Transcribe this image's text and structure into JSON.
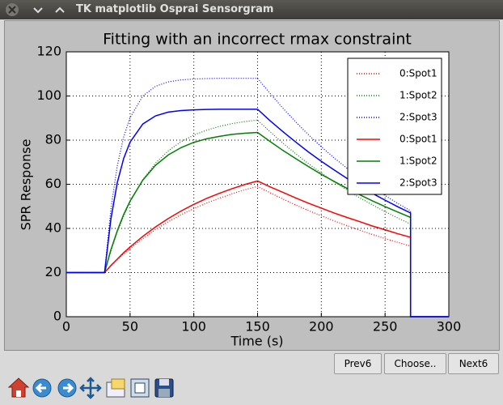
{
  "window": {
    "title": "TK matplotlib Osprai Sensorgram"
  },
  "buttons": [
    "Prev6",
    "Choose..",
    "Next6"
  ],
  "chart_data": {
    "type": "line",
    "title": "Fitting with an incorrect rmax constraint",
    "x_label": "Time (s)",
    "y_label": "SPR Response",
    "x": [
      0,
      30,
      35,
      40,
      45,
      50,
      60,
      70,
      80,
      90,
      100,
      110,
      120,
      130,
      140,
      150,
      160,
      170,
      180,
      190,
      200,
      210,
      220,
      230,
      240,
      250,
      260,
      270,
      270,
      300
    ],
    "series": [
      {
        "name": "0:Spot1",
        "color": "#ff0000",
        "style": "dotted",
        "values": [
          20,
          20,
          23.0,
          25.8,
          28.4,
          30.9,
          35.4,
          39.5,
          43.0,
          46.2,
          49.0,
          51.5,
          53.7,
          55.7,
          57.5,
          59.0,
          56.1,
          53.3,
          50.6,
          48.1,
          45.7,
          43.4,
          41.3,
          39.2,
          37.3,
          35.4,
          33.7,
          32.0,
          0,
          0
        ]
      },
      {
        "name": "1:Spot2",
        "color": "#008000",
        "style": "dotted",
        "values": [
          20,
          20,
          29.9,
          38.4,
          45.7,
          52.0,
          62.1,
          69.6,
          75.2,
          79.3,
          82.3,
          84.5,
          86.2,
          87.5,
          88.4,
          89.1,
          83.7,
          78.6,
          73.8,
          69.3,
          65.1,
          61.1,
          57.5,
          53.9,
          50.7,
          47.6,
          44.7,
          42.0,
          0,
          0
        ]
      },
      {
        "name": "2:Spot3",
        "color": "#0000ff",
        "style": "dotted",
        "values": [
          20,
          20,
          49.0,
          68.5,
          81.5,
          90.2,
          100.0,
          104.4,
          106.4,
          107.3,
          107.7,
          107.9,
          108,
          108,
          108,
          108,
          101.0,
          94.4,
          88.2,
          82.4,
          77.0,
          72.0,
          67.3,
          62.9,
          58.8,
          54.9,
          51.3,
          48.0,
          0,
          0
        ]
      },
      {
        "name": "0:Spot1",
        "color": "#ff0000",
        "style": "solid",
        "values": [
          20,
          20,
          23.2,
          26.1,
          29.0,
          31.6,
          36.4,
          40.7,
          44.5,
          47.9,
          50.9,
          53.6,
          55.9,
          58.0,
          59.9,
          61.5,
          58.8,
          56.3,
          53.8,
          51.4,
          49.2,
          47.0,
          45.0,
          43.1,
          41.1,
          39.4,
          37.6,
          36.0,
          0,
          0
        ]
      },
      {
        "name": "1:Spot2",
        "color": "#008000",
        "style": "solid",
        "values": [
          20,
          20,
          30.4,
          39.0,
          46.3,
          52.4,
          61.9,
          68.6,
          73.3,
          76.6,
          79.0,
          80.6,
          81.7,
          82.6,
          83.1,
          83.5,
          79.3,
          75.3,
          71.6,
          68.0,
          64.5,
          61.3,
          58.2,
          55.3,
          52.5,
          49.9,
          47.4,
          45.0,
          0,
          0
        ]
      },
      {
        "name": "2:Spot3",
        "color": "#0000ff",
        "style": "solid",
        "values": [
          20,
          20,
          44.4,
          60.8,
          71.7,
          79.1,
          87.3,
          91.0,
          92.7,
          93.4,
          93.7,
          93.9,
          94,
          94,
          94,
          94,
          88.7,
          83.8,
          79.1,
          74.6,
          70.4,
          66.5,
          62.7,
          59.2,
          55.9,
          52.8,
          49.8,
          47.0,
          0,
          0
        ]
      }
    ],
    "xlim": [
      0,
      300
    ],
    "xticks": [
      0,
      50,
      100,
      150,
      200,
      250,
      300
    ],
    "ylim": [
      0,
      120
    ],
    "yticks": [
      0,
      20,
      40,
      60,
      80,
      100,
      120
    ],
    "grid": true,
    "legend": "upper right"
  }
}
